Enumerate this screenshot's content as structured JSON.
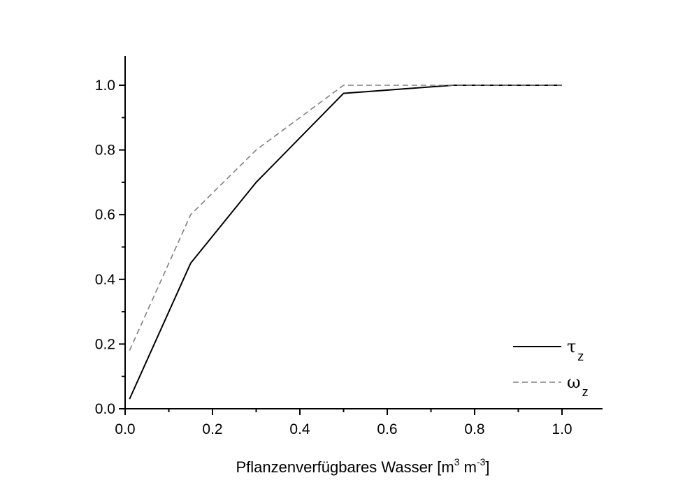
{
  "chart_data": {
    "type": "line",
    "title": "",
    "xlabel": "Pflanzenverfügbares Wasser [m³ m⁻³]",
    "xlabel_parts": {
      "base": "Pflanzenverfügbares Wasser [m",
      "sup1": "3",
      "mid": " m",
      "sup2": "-3",
      "end": "]"
    },
    "ylabel": "",
    "xlim": [
      0,
      1.09
    ],
    "ylim": [
      0,
      1.09
    ],
    "xticks": [
      0.0,
      0.2,
      0.4,
      0.6,
      0.8,
      1.0
    ],
    "xtick_labels": [
      "0.0",
      "0.2",
      "0.4",
      "0.6",
      "0.8",
      "1.0"
    ],
    "yticks": [
      0.0,
      0.2,
      0.4,
      0.6,
      0.8,
      1.0
    ],
    "ytick_labels": [
      "0.0",
      "0.2",
      "0.4",
      "0.6",
      "0.8",
      "1.0"
    ],
    "grid": false,
    "legend_position": "bottom-right",
    "series": [
      {
        "symbol": "τ",
        "subscript": "z",
        "style": "solid",
        "color": "#000000",
        "x": [
          0.01,
          0.15,
          0.3,
          0.5,
          0.75,
          1.0
        ],
        "y": [
          0.03,
          0.45,
          0.7,
          0.975,
          1.0,
          1.0
        ]
      },
      {
        "symbol": "ω",
        "subscript": "z",
        "style": "dashed",
        "color": "#808080",
        "x": [
          0.01,
          0.15,
          0.3,
          0.5,
          0.75,
          1.0
        ],
        "y": [
          0.18,
          0.6,
          0.8,
          1.0,
          1.0,
          1.0
        ]
      }
    ]
  }
}
